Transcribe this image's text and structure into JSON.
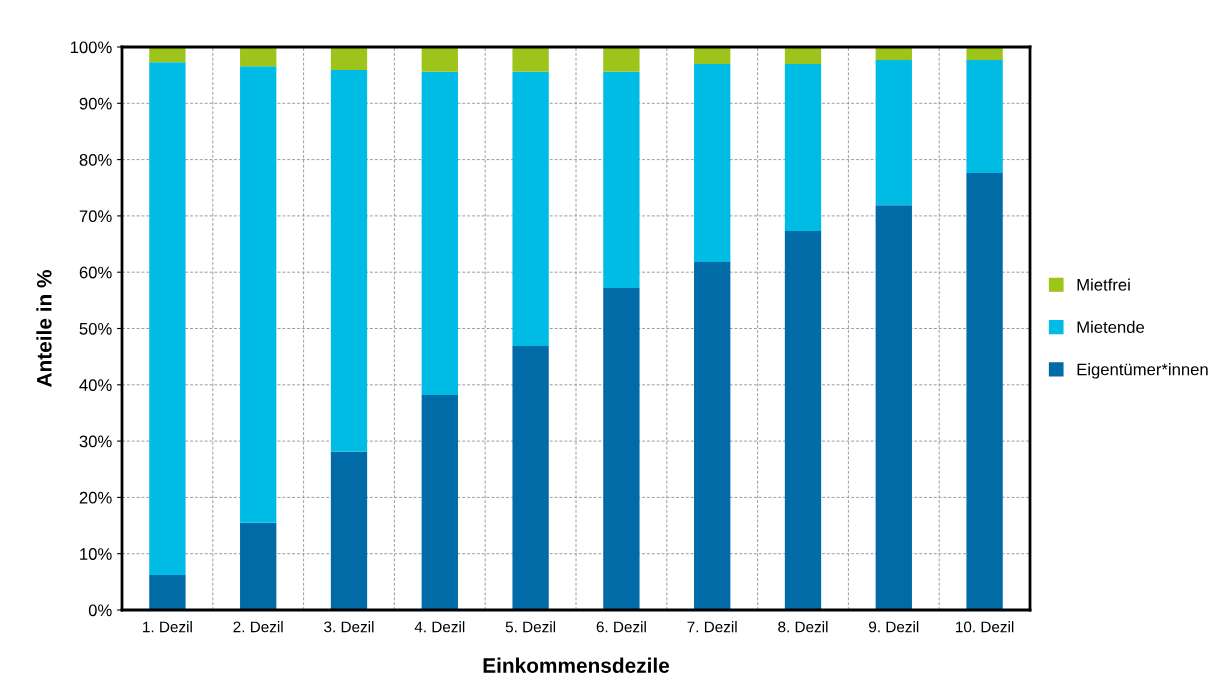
{
  "chart_data": {
    "type": "bar",
    "stacked": true,
    "xlabel": "Einkommensdezile",
    "ylabel": "Anteile in %",
    "categories": [
      "1. Dezil",
      "2. Dezil",
      "3. Dezil",
      "4. Dezil",
      "5. Dezil",
      "6. Dezil",
      "7. Dezil",
      "8. Dezil",
      "9. Dezil",
      "10. Dezil"
    ],
    "series": [
      {
        "name": "Eigentümer*innen",
        "color": "#006ba6",
        "values": [
          6.2,
          15.5,
          28.1,
          38.2,
          46.9,
          57.2,
          61.8,
          67.3,
          71.9,
          77.6
        ]
      },
      {
        "name": "Mietende",
        "color": "#00bce4",
        "values": [
          91.1,
          81.1,
          67.8,
          57.4,
          48.7,
          38.4,
          35.2,
          29.7,
          25.8,
          20.1
        ]
      },
      {
        "name": "Mietfrei",
        "color": "#9dc41a",
        "values": [
          2.7,
          3.4,
          4.1,
          4.4,
          4.4,
          4.4,
          3.0,
          3.0,
          2.3,
          2.3
        ]
      }
    ],
    "ylim": [
      0,
      100
    ],
    "yticks": [
      {
        "value": 0,
        "label": "0%"
      },
      {
        "value": 10,
        "label": "10%"
      },
      {
        "value": 20,
        "label": "20%"
      },
      {
        "value": 30,
        "label": "30%"
      },
      {
        "value": 40,
        "label": "40%"
      },
      {
        "value": 50,
        "label": "50%"
      },
      {
        "value": 60,
        "label": "60%"
      },
      {
        "value": 70,
        "label": "70%"
      },
      {
        "value": 80,
        "label": "80%"
      },
      {
        "value": 90,
        "label": "90%"
      },
      {
        "value": 100,
        "label": "100%"
      }
    ],
    "grid": true,
    "legend": "right"
  }
}
